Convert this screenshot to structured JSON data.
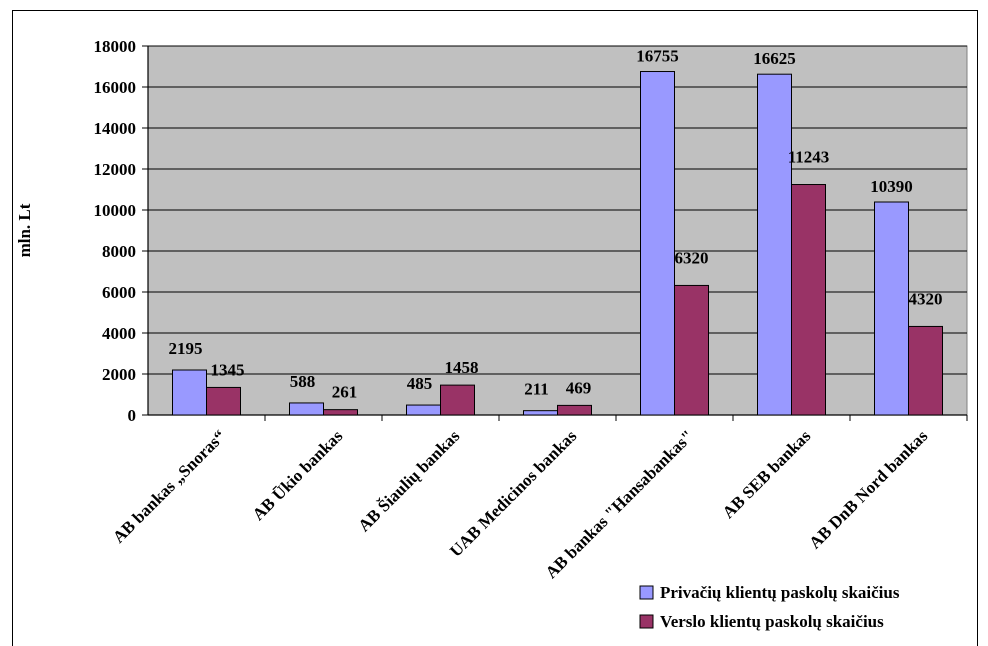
{
  "chart_data": {
    "type": "bar",
    "ylabel": "mln. Lt",
    "ylim": [
      0,
      18000
    ],
    "yticks": [
      0,
      2000,
      4000,
      6000,
      8000,
      10000,
      12000,
      14000,
      16000,
      18000
    ],
    "grid": true,
    "legend_position": "bottom-right",
    "categories": [
      "AB bankas „Snoras“",
      "AB Ūkio bankas",
      "AB Šiaulių bankas",
      "UAB Medicinos bankas",
      "AB bankas \"Hansabankas\"",
      "AB SEB bankas",
      "AB DnB Nord bankas"
    ],
    "series": [
      {
        "name": "Privačių klientų paskolų skaičius",
        "values": [
          2195,
          588,
          485,
          211,
          16755,
          16625,
          10390
        ],
        "color": "#9999ff"
      },
      {
        "name": "Verslo klientų paskolų skaičius",
        "values": [
          1345,
          261,
          1458,
          469,
          6320,
          11243,
          4320
        ],
        "color": "#993366"
      }
    ],
    "plot_background": "#c0c0c0"
  }
}
